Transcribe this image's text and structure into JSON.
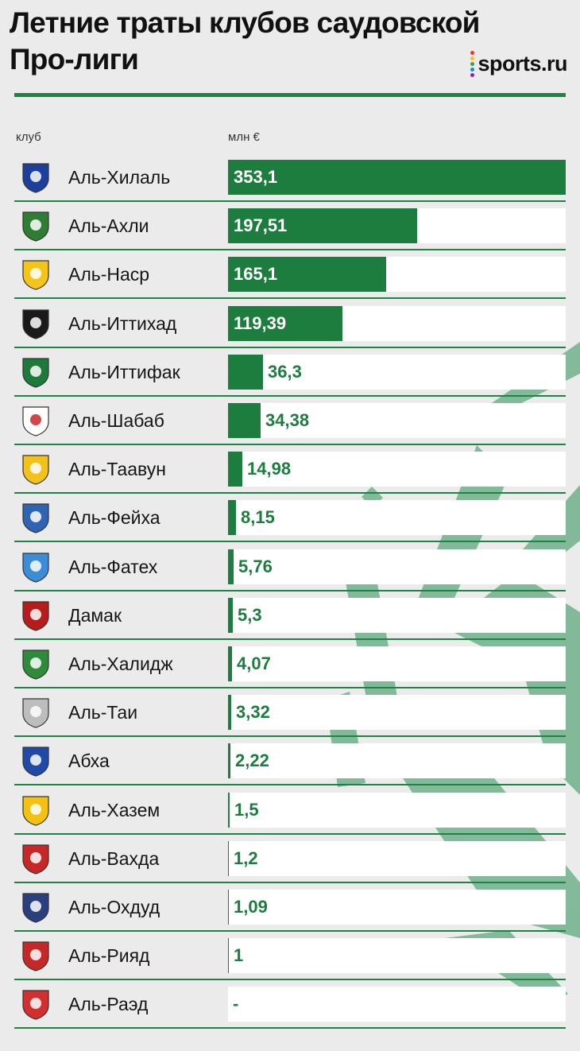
{
  "title": "Летние траты клубов саудовской Про-лиги",
  "brand": {
    "name": "sports.ru",
    "dot_colors": [
      "#e53935",
      "#fbc02d",
      "#43a047",
      "#1e88e5",
      "#8e24aa"
    ]
  },
  "colors": {
    "accent": "#1e8444",
    "bar": "#1d7d3e",
    "track": "#ffffff",
    "background": "#ebebeb"
  },
  "chart_data": {
    "type": "bar",
    "orientation": "horizontal",
    "xlabel": "млн €",
    "ylabel": "клуб",
    "xlim": [
      0,
      353.1
    ],
    "grid": false,
    "legend": "none",
    "categories": [
      "Аль-Хилаль",
      "Аль-Ахли",
      "Аль-Наср",
      "Аль-Иттихад",
      "Аль-Иттифак",
      "Аль-Шабаб",
      "Аль-Таавун",
      "Аль-Фейха",
      "Аль-Фатех",
      "Дамак",
      "Аль-Халидж",
      "Аль-Таи",
      "Абха",
      "Аль-Хазем",
      "Аль-Вахда",
      "Аль-Охдуд",
      "Аль-Рияд",
      "Аль-Раэд"
    ],
    "values": [
      353.1,
      197.51,
      165.1,
      119.39,
      36.3,
      34.38,
      14.98,
      8.15,
      5.76,
      5.3,
      4.07,
      3.32,
      2.22,
      1.5,
      1.2,
      1.09,
      1,
      0
    ],
    "value_labels": [
      "353,1",
      "197,51",
      "165,1",
      "119,39",
      "36,3",
      "34,38",
      "14,98",
      "8,15",
      "5,76",
      "5,3",
      "4,07",
      "3,32",
      "2,22",
      "1,5",
      "1,2",
      "1,09",
      "1",
      "-"
    ],
    "logo_colors": [
      "#1b3f9a",
      "#2e7d32",
      "#f4c518",
      "#1a1a1a",
      "#1e7a3a",
      "#ffffff",
      "#f2c21b",
      "#2f64b3",
      "#3a8dd6",
      "#b71c1c",
      "#2e8b3a",
      "#bdbdbd",
      "#1f4aa8",
      "#f4c20d",
      "#c62828",
      "#2a3f7e",
      "#c62828",
      "#d32f2f"
    ]
  }
}
